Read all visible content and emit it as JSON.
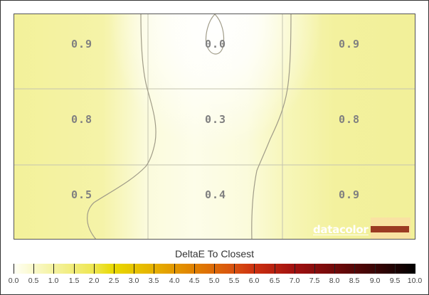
{
  "chart_data": {
    "type": "heatmap",
    "title": "",
    "grid": {
      "rows": 3,
      "cols": 3
    },
    "cells": [
      [
        0.9,
        0.0,
        0.9
      ],
      [
        0.8,
        0.3,
        0.8
      ],
      [
        0.5,
        0.4,
        0.9
      ]
    ],
    "gridlines": true,
    "contours": true,
    "colorbar": {
      "title": "DeltaE To Closest",
      "min": 0.0,
      "max": 10.0,
      "ticks": [
        "0.0",
        "0.5",
        "1.0",
        "1.5",
        "2.0",
        "2.5",
        "3.0",
        "3.5",
        "4.0",
        "4.5",
        "5.0",
        "5.5",
        "6.0",
        "6.5",
        "7.0",
        "7.5",
        "8.0",
        "8.5",
        "9.0",
        "9.5",
        "10.0"
      ],
      "colors": {
        "0": "#fffff5",
        "1": "#f4f2a0",
        "2": "#eee650",
        "2.5": "#e8d800",
        "3.5": "#e6b000",
        "4.5": "#e08000",
        "5.5": "#d85010",
        "6": "#cc3010",
        "7": "#a01010",
        "8": "#700a0a",
        "9": "#3a0505",
        "10": "#000000"
      }
    }
  },
  "cells": {
    "r0c0": "0.9",
    "r0c1": "0.0",
    "r0c2": "0.9",
    "r1c0": "0.8",
    "r1c1": "0.3",
    "r1c2": "0.8",
    "r2c0": "0.5",
    "r2c1": "0.4",
    "r2c2": "0.9"
  },
  "colorbar": {
    "title": "DeltaE To Closest",
    "ticks": [
      "0.0",
      "0.5",
      "1.0",
      "1.5",
      "2.0",
      "2.5",
      "3.0",
      "3.5",
      "4.0",
      "4.5",
      "5.0",
      "5.5",
      "6.0",
      "6.5",
      "7.0",
      "7.5",
      "8.0",
      "8.5",
      "9.0",
      "9.5",
      "10.0"
    ]
  },
  "logo": {
    "text": "datacolor",
    "bar_color": "#9b3a22"
  }
}
